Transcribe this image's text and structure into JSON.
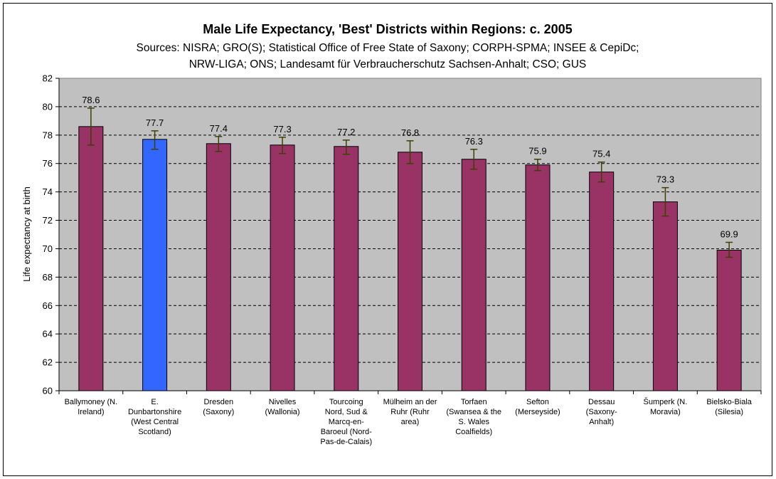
{
  "chart_data": {
    "type": "bar",
    "title": "Male Life Expectancy, 'Best' Districts within Regions: c. 2005",
    "subtitle_lines": [
      "Sources: NISRA; GRO(S); Statistical Office of Free State of Saxony; CORPH-SPMA; INSEE & CepiDc;",
      "NRW-LIGA; ONS; Landesamt für Verbraucherschutz Sachsen-Anhalt; CSO; GUS"
    ],
    "xlabel": "",
    "ylabel": "Life expectancy at birth",
    "ylim": [
      60,
      82
    ],
    "yticks": [
      60,
      62,
      64,
      66,
      68,
      70,
      72,
      74,
      76,
      78,
      80,
      82
    ],
    "grid": "horizontal-dashed",
    "colors": {
      "plot_background": "#c0c0c0",
      "bar": "#993366",
      "highlight_bar": "#3366ff",
      "error_bar": "#3f3f00"
    },
    "categories": [
      [
        "Ballymoney (N.",
        "Ireland)"
      ],
      [
        "E.",
        "Dunbartonshire",
        "(West Central",
        "Scotland)"
      ],
      [
        "Dresden",
        "(Saxony)"
      ],
      [
        "Nivelles",
        "(Wallonia)"
      ],
      [
        "Tourcoing",
        "Nord, Sud &",
        "Marcq-en-",
        "Baroeul (Nord-",
        "Pas-de-Calais)"
      ],
      [
        "Mülheim an der",
        "Ruhr (Ruhr",
        "area)"
      ],
      [
        "Torfaen",
        "(Swansea & the",
        "S. Wales",
        "Coalfields)"
      ],
      [
        "Sefton",
        "(Merseyside)"
      ],
      [
        "Dessau",
        "(Saxony-",
        "Anhalt)"
      ],
      [
        "Šumperk (N.",
        "Moravia)"
      ],
      [
        "Bielsko-Biala",
        "(Silesia)"
      ]
    ],
    "values": [
      78.6,
      77.7,
      77.4,
      77.3,
      77.2,
      76.8,
      76.3,
      75.9,
      75.4,
      73.3,
      69.9
    ],
    "data_labels": [
      "78.6",
      "77.7",
      "77.4",
      "77.3",
      "77.2",
      "76.8",
      "76.3",
      "75.9",
      "75.4",
      "73.3",
      "69.9"
    ],
    "error_low": [
      77.3,
      77.0,
      76.85,
      76.7,
      76.65,
      76.0,
      75.6,
      75.5,
      74.7,
      72.3,
      69.4
    ],
    "error_high": [
      79.9,
      78.3,
      77.9,
      77.85,
      77.65,
      77.6,
      77.0,
      76.3,
      76.1,
      74.3,
      70.45
    ],
    "highlight_index": 1
  }
}
